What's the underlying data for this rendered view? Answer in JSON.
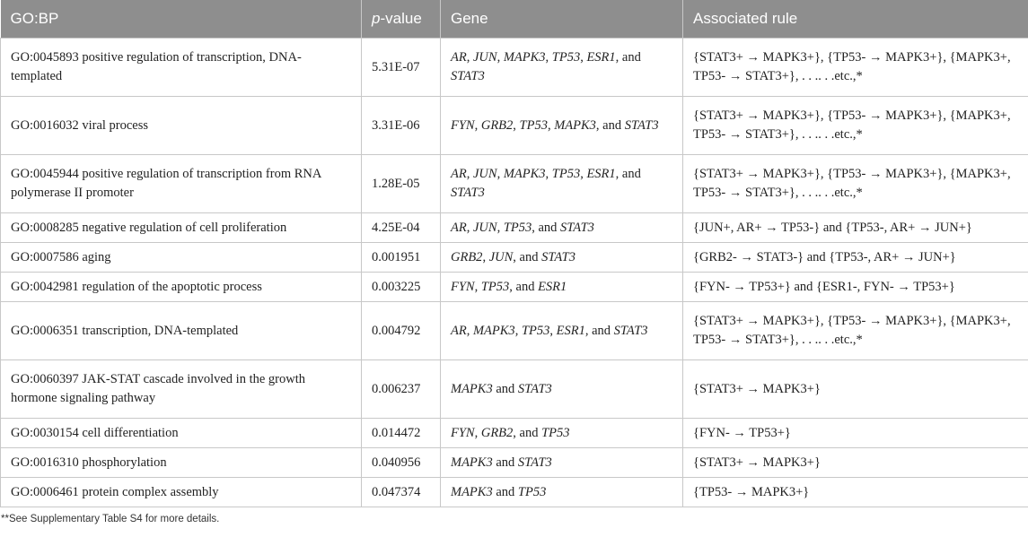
{
  "header": {
    "col1": "GO:BP",
    "col2_italic": "p",
    "col2_rest": "-value",
    "col3": "Gene",
    "col4": "Associated rule"
  },
  "conjunction": "and",
  "rows": [
    {
      "term": "GO:0045893 positive regulation of transcription, DNA-templated",
      "p": "5.31E-07",
      "genes": [
        "AR",
        "JUN",
        "MAPK3",
        "TP53",
        "ESR1",
        "STAT3"
      ],
      "rule": "{STAT3+ → MAPK3+}, {TP53- → MAPK3+}, {MAPK3+, TP53- → STAT3+}, . . .. . .etc.,*"
    },
    {
      "term": "GO:0016032 viral process",
      "p": "3.31E-06",
      "genes": [
        "FYN",
        "GRB2",
        "TP53",
        "MAPK3",
        "STAT3"
      ],
      "rule": "{STAT3+ → MAPK3+}, {TP53- → MAPK3+}, {MAPK3+, TP53- → STAT3+}, . . .. . .etc.,*"
    },
    {
      "term": "GO:0045944 positive regulation of transcription from RNA polymerase II promoter",
      "p": "1.28E-05",
      "genes": [
        "AR",
        "JUN",
        "MAPK3",
        "TP53",
        "ESR1",
        "STAT3"
      ],
      "rule": "{STAT3+ → MAPK3+}, {TP53- → MAPK3+}, {MAPK3+, TP53- → STAT3+}, . . .. . .etc.,*"
    },
    {
      "term": "GO:0008285 negative regulation of cell proliferation",
      "p": "4.25E-04",
      "genes": [
        "AR",
        "JUN",
        "TP53",
        "STAT3"
      ],
      "rule": "{JUN+, AR+ → TP53-} and {TP53-, AR+ → JUN+}"
    },
    {
      "term": "GO:0007586 aging",
      "p": "0.001951",
      "genes": [
        "GRB2",
        "JUN",
        "STAT3"
      ],
      "rule": "{GRB2- → STAT3-} and {TP53-, AR+ → JUN+}"
    },
    {
      "term": "GO:0042981 regulation of the apoptotic process",
      "p": "0.003225",
      "genes": [
        "FYN",
        "TP53",
        "ESR1"
      ],
      "rule": "{FYN- → TP53+} and {ESR1-, FYN- → TP53+}"
    },
    {
      "term": "GO:0006351 transcription, DNA-templated",
      "p": "0.004792",
      "genes": [
        "AR",
        "MAPK3",
        "TP53",
        "ESR1",
        "STAT3"
      ],
      "rule": "{STAT3+ → MAPK3+}, {TP53- → MAPK3+}, {MAPK3+, TP53- → STAT3+}, . . .. . .etc.,*"
    },
    {
      "term": "GO:0060397 JAK-STAT cascade involved in the growth hormone signaling pathway",
      "p": "0.006237",
      "genes": [
        "MAPK3",
        "STAT3"
      ],
      "rule": "{STAT3+ → MAPK3+}"
    },
    {
      "term": "GO:0030154 cell differentiation",
      "p": "0.014472",
      "genes": [
        "FYN",
        "GRB2",
        "TP53"
      ],
      "rule": "{FYN- → TP53+}"
    },
    {
      "term": "GO:0016310 phosphorylation",
      "p": "0.040956",
      "genes": [
        "MAPK3",
        "STAT3"
      ],
      "rule": "{STAT3+ → MAPK3+}"
    },
    {
      "term": "GO:0006461 protein complex assembly",
      "p": "0.047374",
      "genes": [
        "MAPK3",
        "TP53"
      ],
      "rule": "{TP53- → MAPK3+}"
    }
  ],
  "footnote": "**See Supplementary Table S4 for more details."
}
